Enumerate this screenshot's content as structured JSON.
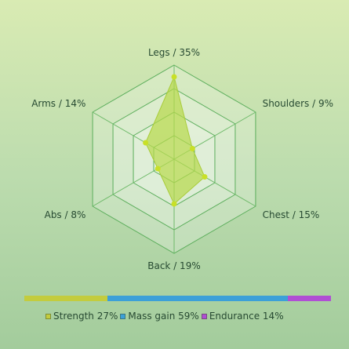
{
  "chart_data": {
    "type": "radar",
    "title": "",
    "axes": [
      {
        "label": "Legs / 35%",
        "value": 35
      },
      {
        "label": "Shoulders / 9%",
        "value": 9
      },
      {
        "label": "Chest / 15%",
        "value": 15
      },
      {
        "label": "Back / 19%",
        "value": 19
      },
      {
        "label": "Abs / 8%",
        "value": 8
      },
      {
        "label": "Arms / 14%",
        "value": 14
      }
    ],
    "rmax": 40,
    "rings": 4,
    "grid": true,
    "series_color": "#b6d94a",
    "point_color": "#c8e028"
  },
  "legend": {
    "items": [
      {
        "label": "Strength 27%",
        "value": 27,
        "color": "#c3cc3e"
      },
      {
        "label": "Mass gain 59%",
        "value": 59,
        "color": "#3ca0d8"
      },
      {
        "label": "Endurance 14%",
        "value": 14,
        "color": "#b04fd4"
      }
    ]
  }
}
